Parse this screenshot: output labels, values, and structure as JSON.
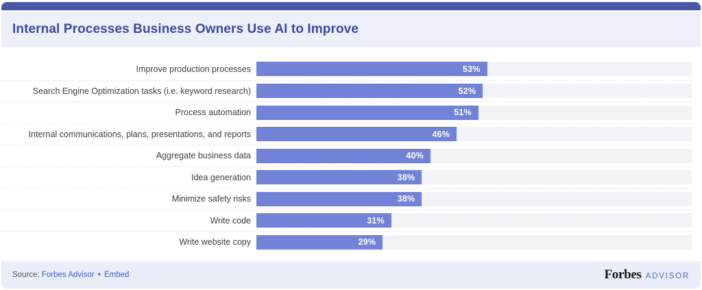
{
  "header": {
    "title": "Internal Processes Business Owners Use AI to Improve"
  },
  "chart_data": {
    "type": "bar",
    "orientation": "horizontal",
    "title": "Internal Processes Business Owners Use AI to Improve",
    "categories": [
      "Improve production processes",
      "Search Engine Optimization tasks (i.e. keyword research)",
      "Process automation",
      "Internal communications, plans, presentations, and reports",
      "Aggregate business data",
      "Idea generation",
      "Minimize safety risks",
      "Write code",
      "Write website copy"
    ],
    "values": [
      53,
      52,
      51,
      46,
      40,
      38,
      38,
      31,
      29
    ],
    "value_suffix": "%",
    "xlim": [
      0,
      100
    ],
    "grid": "dashed-row-separators",
    "value_label_position": "inside-end"
  },
  "footer": {
    "source_prefix": "Source:",
    "source_link": "Forbes Advisor",
    "separator": "•",
    "embed_link": "Embed",
    "brand": {
      "name": "Forbes",
      "suffix": "ADVISOR"
    }
  },
  "colors": {
    "accent": "#4857a6",
    "title": "#3b4a9e",
    "header-bg": "#edf0f9",
    "bar": "#7282d6",
    "track": "#f3f3f5",
    "footer-bg": "#e9eef8",
    "link": "#3c62c3"
  }
}
